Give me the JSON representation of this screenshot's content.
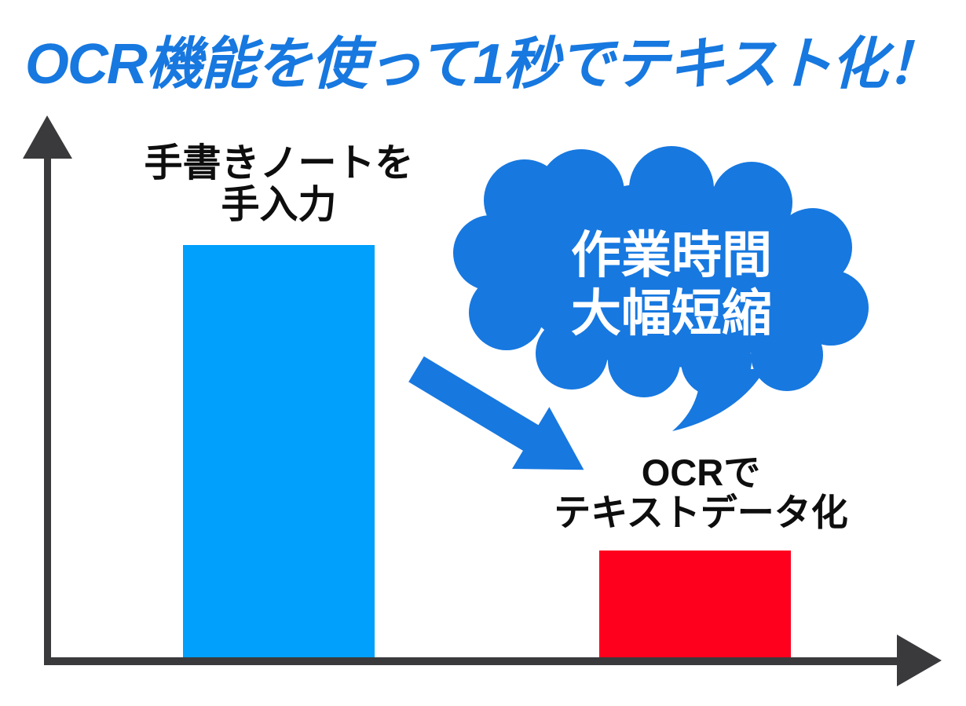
{
  "title": "OCR機能を使って1秒でテキスト化！",
  "colors": {
    "accent_blue": "#1778E0",
    "bar_blue": "#00A0FC",
    "bar_red": "#FE001E",
    "axis_gray": "#3A3A3C",
    "text_black": "#0E0E0E",
    "bubble_text": "#FFFFFF",
    "bg": "#FFFFFF"
  },
  "bars": {
    "manual": {
      "lines": [
        "手書きノートを",
        "手入力"
      ]
    },
    "ocr": {
      "lines": [
        "OCRで",
        "テキストデータ化"
      ]
    }
  },
  "bubble": {
    "lines": [
      "作業時間",
      "大幅短縮"
    ]
  },
  "chart_data": {
    "type": "bar",
    "title": "OCR機能を使って1秒でテキスト化！",
    "categories": [
      "手書きノートを手入力",
      "OCRでテキストデータ化"
    ],
    "values": [
      81,
      21
    ],
    "values_unit": "relative bar height, % of y-axis (no numeric scale shown)",
    "xlabel": "",
    "ylabel": "",
    "ylim": [
      0,
      100
    ],
    "grid": false,
    "legend": false,
    "bar_colors": [
      "#00A0FC",
      "#FE001E"
    ],
    "annotations": [
      "作業時間大幅短縮"
    ],
    "axes_style": "dark-gray arrow-tipped axes, no tick labels"
  }
}
